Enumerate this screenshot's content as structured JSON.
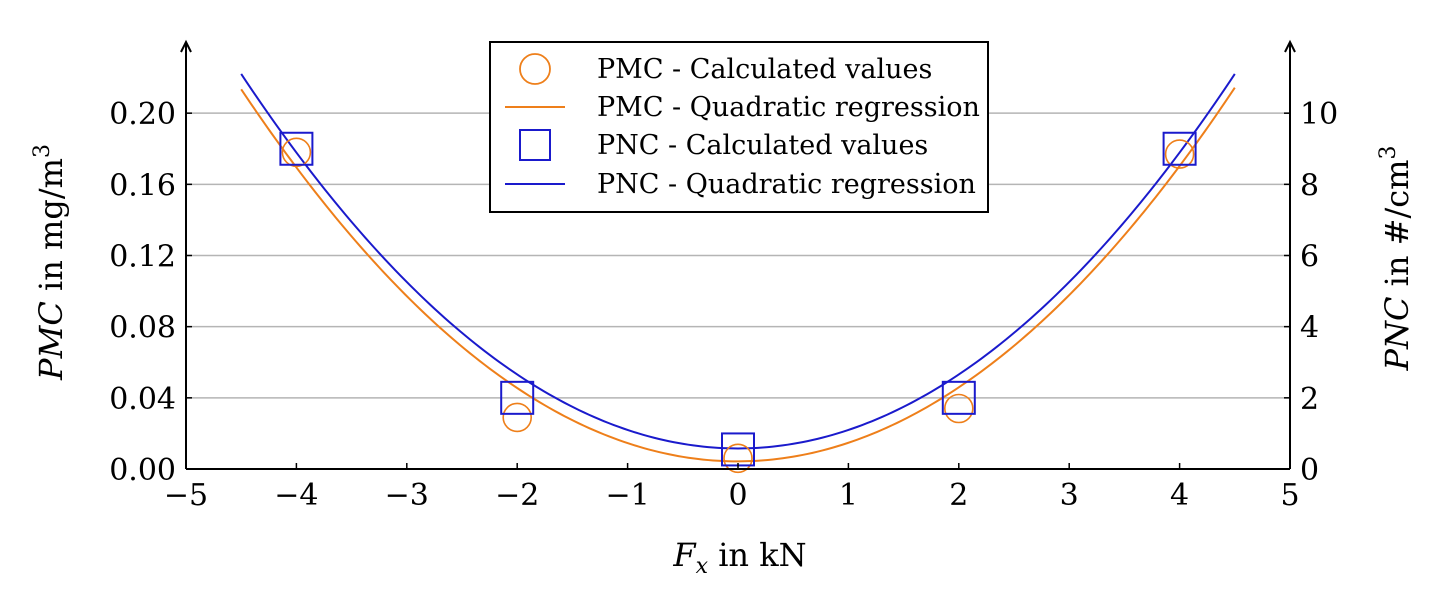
{
  "chart_data": {
    "type": "line",
    "x_axis": {
      "label_var": "F",
      "label_sub": "x",
      "label_rest": " in kN",
      "ticks": [
        -5,
        -4,
        -3,
        -2,
        -1,
        0,
        1,
        2,
        3,
        4,
        5
      ],
      "tick_labels": [
        "−5",
        "−4",
        "−3",
        "−2",
        "−1",
        "0",
        "1",
        "2",
        "3",
        "4",
        "5"
      ],
      "range": [
        -5,
        5
      ]
    },
    "y_axis_left": {
      "label_var": "PMC",
      "label_rest": " in mg/m",
      "label_sup": "3",
      "ticks": [
        0,
        0.04,
        0.08,
        0.12,
        0.16,
        0.2
      ],
      "tick_labels": [
        "0.00",
        "0.04",
        "0.08",
        "0.12",
        "0.16",
        "0.20"
      ],
      "range": [
        0,
        0.24
      ]
    },
    "y_axis_right": {
      "label_var": "PNC",
      "label_rest": " in #/cm",
      "label_sup": "3",
      "ticks": [
        0,
        2,
        4,
        6,
        8,
        10
      ],
      "tick_labels": [
        "0",
        "2",
        "4",
        "6",
        "8",
        "10"
      ],
      "range": [
        0,
        12
      ]
    },
    "grid": true,
    "legend_position": "top-center",
    "series": [
      {
        "name": "PMC - Calculated values",
        "kind": "scatter",
        "marker": "circle",
        "axis": "left",
        "color": "#ee7f1a",
        "x": [
          -4,
          -2,
          0,
          2,
          4
        ],
        "y": [
          0.178,
          0.029,
          0.006,
          0.034,
          0.177
        ]
      },
      {
        "name": "PMC - Quadratic regression",
        "kind": "line",
        "axis": "left",
        "color": "#ee7f1a",
        "domain": [
          -4.5,
          4.5
        ],
        "coef": {
          "a": 0.01035,
          "b": 0.0001,
          "c": 0.0043
        }
      },
      {
        "name": "PNC - Calculated values",
        "kind": "scatter",
        "marker": "square",
        "axis": "right",
        "color": "#1a1acc",
        "x": [
          -4,
          -2,
          0,
          2,
          4
        ],
        "y": [
          9.0,
          2.0,
          0.55,
          2.0,
          9.0
        ]
      },
      {
        "name": "PNC - Quadratic regression",
        "kind": "line",
        "axis": "right",
        "color": "#1a1acc",
        "domain": [
          -4.5,
          4.5
        ],
        "coef": {
          "a": 0.5197,
          "b": 0.0,
          "c": 0.5779
        }
      }
    ]
  }
}
